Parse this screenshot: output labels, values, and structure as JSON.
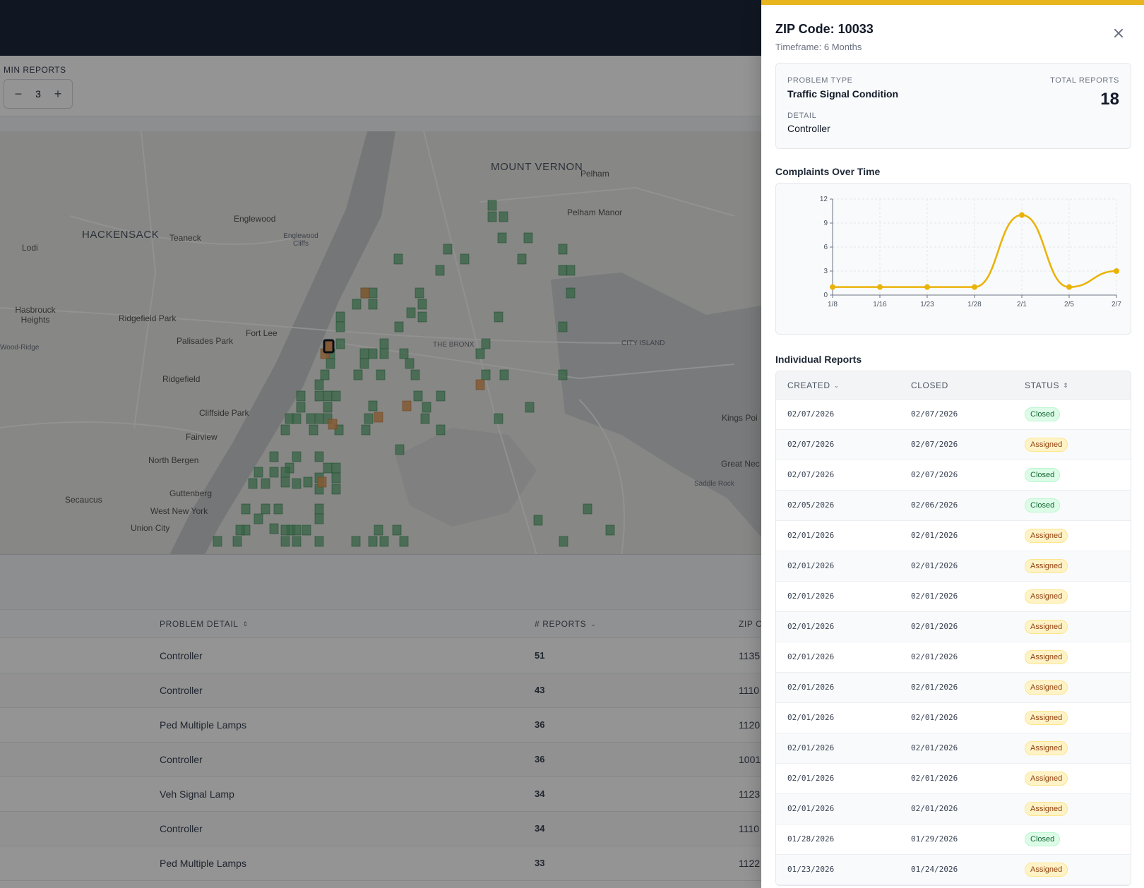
{
  "filters": {
    "min_reports_label": "MIN REPORTS",
    "min_reports_value": "3",
    "minus": "−",
    "plus": "+"
  },
  "map": {
    "labels": [
      "MOUNT VERNON",
      "Pelham",
      "Pelham Manor",
      "Englewood",
      "Englewood Cliffs",
      "HACKENSACK",
      "Teaneck",
      "Lodi",
      "Hasbrouck Heights",
      "Ridgefield Park",
      "Fort Lee",
      "Palisades Park",
      "Wood-Ridge",
      "THE BRONX",
      "CITY ISLAND",
      "Ridgefield",
      "Cliffside Park",
      "Kings Poi",
      "Fairview",
      "North Bergen",
      "Great Nec",
      "Saddle Rock",
      "Guttenberg",
      "Secaucus",
      "West New York",
      "Union City"
    ]
  },
  "bg_table": {
    "headers": {
      "problem_detail": "PROBLEM DETAIL",
      "reports": "# REPORTS",
      "zip": "ZIP C"
    },
    "rows": [
      {
        "detail": "Controller",
        "reports": "51",
        "zip": "1135"
      },
      {
        "detail": "Controller",
        "reports": "43",
        "zip": "1110"
      },
      {
        "detail": "Ped Multiple Lamps",
        "reports": "36",
        "zip": "1120"
      },
      {
        "detail": "Controller",
        "reports": "36",
        "zip": "1001"
      },
      {
        "detail": "Veh Signal Lamp",
        "reports": "34",
        "zip": "1123"
      },
      {
        "detail": "Controller",
        "reports": "34",
        "zip": "1110"
      },
      {
        "detail": "Ped Multiple Lamps",
        "reports": "33",
        "zip": "1122"
      }
    ]
  },
  "drawer": {
    "title": "ZIP Code: 10033",
    "subtitle": "Timeframe: 6 Months",
    "problem_type_label": "PROBLEM TYPE",
    "problem_type": "Traffic Signal Condition",
    "detail_label": "DETAIL",
    "detail": "Controller",
    "total_label": "TOTAL REPORTS",
    "total": "18",
    "chart_title": "Complaints Over Time",
    "reports_title": "Individual Reports",
    "columns": {
      "created": "CREATED",
      "closed": "CLOSED",
      "status": "STATUS"
    },
    "reports": [
      {
        "created": "02/07/2026",
        "closed": "02/07/2026",
        "status": "Closed"
      },
      {
        "created": "02/07/2026",
        "closed": "02/07/2026",
        "status": "Assigned"
      },
      {
        "created": "02/07/2026",
        "closed": "02/07/2026",
        "status": "Closed"
      },
      {
        "created": "02/05/2026",
        "closed": "02/06/2026",
        "status": "Closed"
      },
      {
        "created": "02/01/2026",
        "closed": "02/01/2026",
        "status": "Assigned"
      },
      {
        "created": "02/01/2026",
        "closed": "02/01/2026",
        "status": "Assigned"
      },
      {
        "created": "02/01/2026",
        "closed": "02/01/2026",
        "status": "Assigned"
      },
      {
        "created": "02/01/2026",
        "closed": "02/01/2026",
        "status": "Assigned"
      },
      {
        "created": "02/01/2026",
        "closed": "02/01/2026",
        "status": "Assigned"
      },
      {
        "created": "02/01/2026",
        "closed": "02/01/2026",
        "status": "Assigned"
      },
      {
        "created": "02/01/2026",
        "closed": "02/01/2026",
        "status": "Assigned"
      },
      {
        "created": "02/01/2026",
        "closed": "02/01/2026",
        "status": "Assigned"
      },
      {
        "created": "02/01/2026",
        "closed": "02/01/2026",
        "status": "Assigned"
      },
      {
        "created": "02/01/2026",
        "closed": "02/01/2026",
        "status": "Assigned"
      },
      {
        "created": "01/28/2026",
        "closed": "01/29/2026",
        "status": "Closed"
      },
      {
        "created": "01/23/2026",
        "closed": "01/24/2026",
        "status": "Assigned"
      }
    ]
  },
  "chart_data": {
    "type": "line",
    "title": "Complaints Over Time",
    "x": [
      "1/8",
      "1/16",
      "1/23",
      "1/28",
      "2/1",
      "2/5",
      "2/7"
    ],
    "values": [
      1,
      1,
      1,
      1,
      10,
      1,
      3
    ],
    "ylim": [
      0,
      12
    ],
    "yticks": [
      0,
      3,
      6,
      9,
      12
    ],
    "color": "#eab308",
    "grid": true
  },
  "colors": {
    "accent": "#e8b51e",
    "heat_green": "#5fae78",
    "heat_orange": "#e39b5a"
  }
}
